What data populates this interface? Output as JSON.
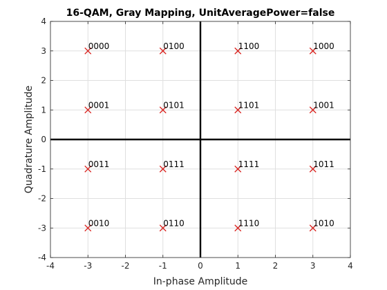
{
  "chart_data": {
    "type": "scatter",
    "title": "16-QAM, Gray Mapping, UnitAveragePower=false",
    "xlabel": "In-phase Amplitude",
    "ylabel": "Quadrature Amplitude",
    "xlim": [
      -4,
      4
    ],
    "ylim": [
      -4,
      4
    ],
    "xticks": [
      -4,
      -3,
      -2,
      -1,
      0,
      1,
      2,
      3,
      4
    ],
    "yticks": [
      -4,
      -3,
      -2,
      -1,
      0,
      1,
      2,
      3,
      4
    ],
    "xtick_labels": [
      "-4",
      "-3",
      "-2",
      "-1",
      "0",
      "1",
      "2",
      "3",
      "4"
    ],
    "ytick_labels": [
      "-4",
      "-3",
      "-2",
      "-1",
      "0",
      "1",
      "2",
      "3",
      "4"
    ],
    "grid": true,
    "marker": "x",
    "marker_color": "#d9221e",
    "reference_lines": [
      {
        "axis": "x",
        "value": 0
      },
      {
        "axis": "y",
        "value": 0
      }
    ],
    "points": [
      {
        "x": -3,
        "y": 3,
        "label": "0000"
      },
      {
        "x": -1,
        "y": 3,
        "label": "0100"
      },
      {
        "x": 1,
        "y": 3,
        "label": "1100"
      },
      {
        "x": 3,
        "y": 3,
        "label": "1000"
      },
      {
        "x": -3,
        "y": 1,
        "label": "0001"
      },
      {
        "x": -1,
        "y": 1,
        "label": "0101"
      },
      {
        "x": 1,
        "y": 1,
        "label": "1101"
      },
      {
        "x": 3,
        "y": 1,
        "label": "1001"
      },
      {
        "x": -3,
        "y": -1,
        "label": "0011"
      },
      {
        "x": -1,
        "y": -1,
        "label": "0111"
      },
      {
        "x": 1,
        "y": -1,
        "label": "1111"
      },
      {
        "x": 3,
        "y": -1,
        "label": "1011"
      },
      {
        "x": -3,
        "y": -3,
        "label": "0010"
      },
      {
        "x": -1,
        "y": -3,
        "label": "0110"
      },
      {
        "x": 1,
        "y": -3,
        "label": "1110"
      },
      {
        "x": 3,
        "y": -3,
        "label": "1010"
      }
    ]
  }
}
